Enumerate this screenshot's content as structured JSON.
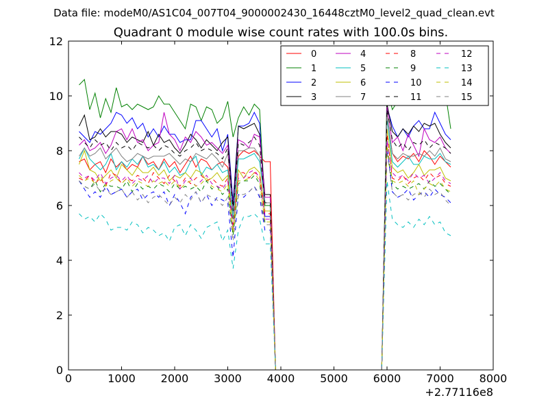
{
  "figure": {
    "suptitle": "Data file: modeM0/AS1C04_007T04_9000002430_16448cztM0_level2_quad_clean.evt"
  },
  "chart_data": {
    "type": "line",
    "title": "Quadrant 0 module wise count rates with 100.0s bins.",
    "xlabel": "",
    "ylabel": "",
    "x_offset_label": "+2.77116e8",
    "xlim": [
      0,
      8000
    ],
    "ylim": [
      0,
      12
    ],
    "x_ticks": [
      0,
      1000,
      2000,
      3000,
      4000,
      5000,
      6000,
      7000,
      8000
    ],
    "y_ticks": [
      0,
      2,
      4,
      6,
      8,
      10,
      12
    ],
    "x_tick_labels": [
      "0",
      "1000",
      "2000",
      "3000",
      "4000",
      "5000",
      "6000",
      "7000",
      "8000"
    ],
    "y_tick_labels": [
      "0",
      "2",
      "4",
      "6",
      "8",
      "10",
      "12"
    ],
    "legend_location": "upper right",
    "legend_columns": 4,
    "grid": false,
    "x_segments": [
      {
        "start": 200,
        "end": 3800,
        "step": 100
      },
      {
        "start": 3900,
        "end": 5900,
        "step": 100
      },
      {
        "start": 6000,
        "end": 7200,
        "step": 100
      }
    ],
    "series": [
      {
        "name": "0",
        "color": "#ff0000",
        "style": "solid",
        "seg1": [
          7.6,
          7.7,
          7.3,
          7.5,
          7.6,
          7.2,
          7.7,
          7.4,
          7.6,
          7.3,
          7.5,
          7.4,
          7.8,
          7.5,
          7.6,
          7.3,
          7.7,
          7.4,
          7.6,
          7.2,
          7.5,
          7.8,
          7.4,
          7.7,
          7.6,
          7.3,
          7.5,
          7.6,
          7.4,
          6.2,
          7.8,
          8.0,
          7.9,
          8.0,
          7.8,
          7.6,
          7.6
        ],
        "seg3": [
          9.3,
          7.9,
          7.6,
          7.8,
          7.7,
          7.9,
          7.6,
          8.0,
          7.8,
          7.5,
          7.8,
          7.6,
          7.4
        ]
      },
      {
        "name": "1",
        "color": "#008000",
        "style": "solid",
        "seg1": [
          10.4,
          10.6,
          9.5,
          10.1,
          9.2,
          9.9,
          9.4,
          10.3,
          9.6,
          9.7,
          9.5,
          9.7,
          9.6,
          9.5,
          9.6,
          10.0,
          9.7,
          9.7,
          9.4,
          9.1,
          8.8,
          9.7,
          9.6,
          9.1,
          9.6,
          9.5,
          9.0,
          9.2,
          9.8,
          8.5,
          9.2,
          9.6,
          9.3,
          9.7,
          9.5,
          6.0,
          6.0
        ],
        "seg3": [
          10.3,
          9.5,
          9.8,
          9.9,
          10.0,
          9.8,
          10.1,
          9.8,
          10.3,
          9.7,
          10.2,
          10.1,
          8.8
        ]
      },
      {
        "name": "2",
        "color": "#0000ff",
        "style": "solid",
        "seg1": [
          8.7,
          8.5,
          8.3,
          8.7,
          8.6,
          8.8,
          9.0,
          9.4,
          9.3,
          9.0,
          9.2,
          8.8,
          9.0,
          8.5,
          8.8,
          8.5,
          8.9,
          8.6,
          8.6,
          8.3,
          8.4,
          8.4,
          9.1,
          9.1,
          8.8,
          8.5,
          8.8,
          8.0,
          8.6,
          6.1,
          8.9,
          8.9,
          9.0,
          9.4,
          9.0,
          5.6,
          5.6
        ],
        "seg3": [
          9.6,
          8.9,
          8.5,
          8.8,
          8.5,
          8.9,
          9.1,
          8.8,
          8.8,
          9.4,
          9.0,
          8.6,
          8.4
        ]
      },
      {
        "name": "3",
        "color": "#000000",
        "style": "solid",
        "seg1": [
          8.9,
          9.3,
          8.4,
          8.5,
          8.8,
          8.5,
          8.7,
          8.7,
          8.6,
          8.3,
          8.5,
          8.4,
          8.3,
          8.7,
          8.2,
          8.6,
          8.3,
          8.4,
          8.1,
          7.9,
          8.2,
          8.6,
          8.4,
          8.1,
          8.4,
          8.2,
          8.0,
          8.3,
          8.5,
          5.9,
          8.9,
          8.8,
          8.9,
          9.0,
          8.6,
          6.4,
          6.4
        ],
        "seg3": [
          9.7,
          8.7,
          8.5,
          8.8,
          8.6,
          8.9,
          8.7,
          9.0,
          8.9,
          9.0,
          8.6,
          8.3,
          8.1
        ]
      },
      {
        "name": "4",
        "color": "#bf00bf",
        "style": "solid",
        "seg1": [
          8.2,
          8.4,
          8.0,
          8.1,
          8.3,
          7.9,
          8.2,
          8.7,
          8.8,
          8.4,
          8.8,
          8.3,
          8.4,
          8.0,
          8.2,
          8.3,
          9.4,
          8.6,
          8.4,
          8.0,
          8.5,
          8.3,
          8.7,
          8.5,
          8.2,
          8.3,
          8.1,
          7.9,
          8.2,
          5.8,
          8.4,
          8.3,
          8.1,
          8.6,
          8.5,
          6.3,
          6.3
        ],
        "seg3": [
          9.6,
          8.3,
          8.5,
          8.0,
          8.6,
          8.2,
          7.8,
          8.8,
          8.4,
          8.3,
          8.5,
          8.1,
          7.9
        ]
      },
      {
        "name": "5",
        "color": "#00bfbf",
        "style": "solid",
        "seg1": [
          7.7,
          8.1,
          7.7,
          7.5,
          7.3,
          7.5,
          7.9,
          7.3,
          7.6,
          7.4,
          7.7,
          7.5,
          7.8,
          7.4,
          7.5,
          7.3,
          7.6,
          7.2,
          7.4,
          7.1,
          7.2,
          7.6,
          7.8,
          7.1,
          7.4,
          7.3,
          7.5,
          7.2,
          7.3,
          5.5,
          7.7,
          7.7,
          7.8,
          7.9,
          7.6,
          6.1,
          6.1
        ],
        "seg3": [
          9.2,
          7.6,
          7.4,
          7.6,
          7.8,
          7.5,
          7.5,
          7.8,
          7.7,
          7.7,
          7.9,
          7.6,
          7.5
        ]
      },
      {
        "name": "6",
        "color": "#bfbf00",
        "style": "solid",
        "seg1": [
          7.5,
          8.0,
          7.3,
          7.2,
          6.9,
          7.1,
          7.3,
          7.0,
          7.5,
          7.3,
          7.1,
          7.4,
          7.2,
          7.2,
          7.4,
          7.1,
          7.3,
          6.9,
          7.1,
          7.0,
          7.2,
          7.0,
          7.3,
          7.2,
          6.9,
          7.0,
          7.2,
          6.9,
          7.1,
          5.1,
          7.3,
          7.0,
          7.3,
          7.4,
          7.2,
          5.8,
          5.8
        ],
        "seg3": [
          8.8,
          7.4,
          7.2,
          7.3,
          7.0,
          7.2,
          7.5,
          7.1,
          7.3,
          7.3,
          7.4,
          7.0,
          6.9
        ]
      },
      {
        "name": "7",
        "color": "#808080",
        "style": "solid",
        "seg1": [
          7.8,
          8.1,
          7.8,
          7.9,
          8.1,
          7.7,
          7.9,
          8.1,
          7.8,
          7.6,
          7.7,
          7.9,
          7.8,
          7.7,
          7.8,
          7.8,
          7.8,
          7.9,
          7.7,
          7.5,
          7.7,
          7.6,
          7.9,
          7.8,
          7.7,
          7.9,
          7.7,
          7.4,
          7.9,
          5.7,
          8.0,
          8.0,
          8.1,
          8.1,
          7.8,
          6.1,
          6.1
        ],
        "seg3": [
          9.3,
          7.9,
          7.7,
          7.9,
          7.8,
          7.8,
          7.9,
          7.8,
          8.0,
          7.8,
          8.1,
          7.7,
          7.6
        ]
      },
      {
        "name": "8",
        "color": "#ff0000",
        "style": "dashed",
        "seg1": [
          7.0,
          6.9,
          7.1,
          6.8,
          7.0,
          6.7,
          7.2,
          7.1,
          6.8,
          7.0,
          6.9,
          7.1,
          7.0,
          6.8,
          7.2,
          7.0,
          6.8,
          7.1,
          6.9,
          6.7,
          7.0,
          6.8,
          7.0,
          7.1,
          6.9,
          7.0,
          6.8,
          6.7,
          7.0,
          5.3,
          7.2,
          7.2,
          7.0,
          7.2,
          7.1,
          5.7,
          5.7
        ],
        "seg3": [
          8.6,
          7.0,
          6.9,
          7.1,
          6.8,
          7.0,
          7.1,
          6.9,
          7.2,
          7.0,
          7.1,
          6.8,
          6.7
        ]
      },
      {
        "name": "9",
        "color": "#008000",
        "style": "dashed",
        "seg1": [
          6.9,
          6.7,
          6.6,
          6.9,
          6.5,
          6.8,
          6.7,
          6.7,
          6.6,
          6.9,
          6.5,
          6.8,
          6.6,
          6.7,
          6.6,
          6.8,
          6.7,
          6.5,
          6.8,
          6.6,
          6.7,
          6.6,
          6.7,
          6.5,
          6.9,
          6.6,
          6.7,
          6.4,
          6.6,
          4.9,
          6.8,
          6.9,
          6.9,
          7.1,
          6.8,
          5.4,
          5.4
        ],
        "seg3": [
          8.1,
          6.8,
          6.6,
          6.7,
          6.6,
          6.7,
          6.8,
          6.6,
          6.9,
          6.7,
          6.8,
          6.6,
          6.4
        ]
      },
      {
        "name": "10",
        "color": "#0000ff",
        "style": "dashed",
        "seg1": [
          6.9,
          6.6,
          6.3,
          6.5,
          6.3,
          6.7,
          6.4,
          6.5,
          6.6,
          6.3,
          6.5,
          6.6,
          6.2,
          6.4,
          6.5,
          6.3,
          6.5,
          6.0,
          6.4,
          6.1,
          5.7,
          6.3,
          6.5,
          6.1,
          6.4,
          6.0,
          6.3,
          6.2,
          6.1,
          4.1,
          6.4,
          6.3,
          6.5,
          6.7,
          6.3,
          5.1,
          5.1
        ],
        "seg3": [
          8.2,
          6.5,
          6.3,
          6.4,
          6.6,
          6.2,
          6.4,
          6.5,
          6.3,
          6.6,
          6.4,
          6.3,
          6.1
        ]
      },
      {
        "name": "11",
        "color": "#000000",
        "style": "dashed",
        "seg1": [
          8.5,
          8.3,
          8.1,
          8.4,
          8.2,
          8.3,
          8.0,
          8.3,
          8.1,
          8.2,
          8.0,
          8.3,
          8.2,
          8.1,
          8.2,
          8.0,
          8.2,
          8.1,
          7.9,
          7.8,
          8.0,
          8.1,
          8.3,
          8.0,
          8.1,
          8.0,
          7.9,
          7.7,
          8.1,
          5.8,
          8.3,
          8.2,
          8.3,
          8.5,
          8.2,
          6.1,
          6.1
        ],
        "seg3": [
          9.5,
          8.4,
          8.1,
          8.3,
          8.0,
          8.3,
          8.2,
          8.4,
          8.1,
          8.3,
          8.2,
          8.1,
          7.9
        ]
      },
      {
        "name": "12",
        "color": "#bf00bf",
        "style": "dashed",
        "seg1": [
          7.2,
          7.0,
          7.1,
          6.9,
          7.2,
          6.8,
          7.0,
          7.1,
          6.9,
          7.1,
          6.8,
          7.0,
          6.9,
          7.1,
          6.8,
          7.0,
          7.0,
          6.8,
          7.1,
          6.6,
          6.9,
          7.0,
          6.7,
          6.9,
          7.1,
          6.8,
          6.7,
          6.6,
          6.9,
          5.1,
          7.0,
          7.0,
          7.2,
          7.3,
          7.0,
          5.5,
          5.5
        ],
        "seg3": [
          8.4,
          7.2,
          7.0,
          7.1,
          6.9,
          7.2,
          7.0,
          7.1,
          6.8,
          7.0,
          7.2,
          6.9,
          6.8
        ]
      },
      {
        "name": "13",
        "color": "#00bfbf",
        "style": "dashed",
        "seg1": [
          5.7,
          5.5,
          5.6,
          5.4,
          5.7,
          5.5,
          5.1,
          5.2,
          5.2,
          5.1,
          5.4,
          5.3,
          5.0,
          5.2,
          5.1,
          4.9,
          5.0,
          4.7,
          5.2,
          5.3,
          4.9,
          5.3,
          5.1,
          4.8,
          5.2,
          5.3,
          5.4,
          4.7,
          5.1,
          3.7,
          5.1,
          5.6,
          5.6,
          5.7,
          5.5,
          4.6,
          4.6
        ],
        "seg3": [
          6.9,
          5.5,
          5.3,
          5.2,
          5.4,
          5.2,
          5.5,
          5.3,
          5.6,
          5.3,
          5.4,
          5.0,
          4.9
        ]
      },
      {
        "name": "14",
        "color": "#bfbf00",
        "style": "dashed",
        "seg1": [
          7.1,
          6.9,
          7.0,
          6.8,
          7.1,
          6.7,
          6.9,
          7.0,
          6.8,
          7.0,
          6.7,
          6.9,
          6.8,
          6.7,
          6.9,
          6.8,
          6.9,
          6.7,
          6.9,
          6.6,
          6.8,
          6.9,
          6.7,
          6.8,
          7.0,
          6.7,
          6.6,
          6.5,
          6.8,
          5.0,
          6.9,
          6.9,
          7.0,
          7.2,
          6.9,
          5.4,
          5.4
        ],
        "seg3": [
          8.2,
          6.9,
          6.8,
          6.9,
          6.7,
          6.9,
          6.4,
          6.6,
          6.8,
          6.7,
          6.9,
          6.6,
          6.5
        ]
      },
      {
        "name": "15",
        "color": "#808080",
        "style": "dashed",
        "seg1": [
          6.9,
          6.7,
          6.6,
          6.8,
          6.5,
          6.6,
          6.4,
          6.5,
          6.6,
          6.3,
          6.5,
          6.2,
          6.4,
          6.1,
          6.3,
          6.4,
          6.2,
          6.0,
          6.3,
          6.1,
          6.4,
          6.2,
          6.5,
          6.1,
          6.4,
          6.3,
          6.2,
          6.0,
          6.3,
          4.7,
          6.4,
          6.4,
          6.5,
          6.7,
          6.4,
          5.3,
          5.3
        ],
        "seg3": [
          8.0,
          6.5,
          6.3,
          6.4,
          6.2,
          6.4,
          6.5,
          6.3,
          6.6,
          6.4,
          6.5,
          6.2,
          6.0
        ]
      }
    ]
  }
}
